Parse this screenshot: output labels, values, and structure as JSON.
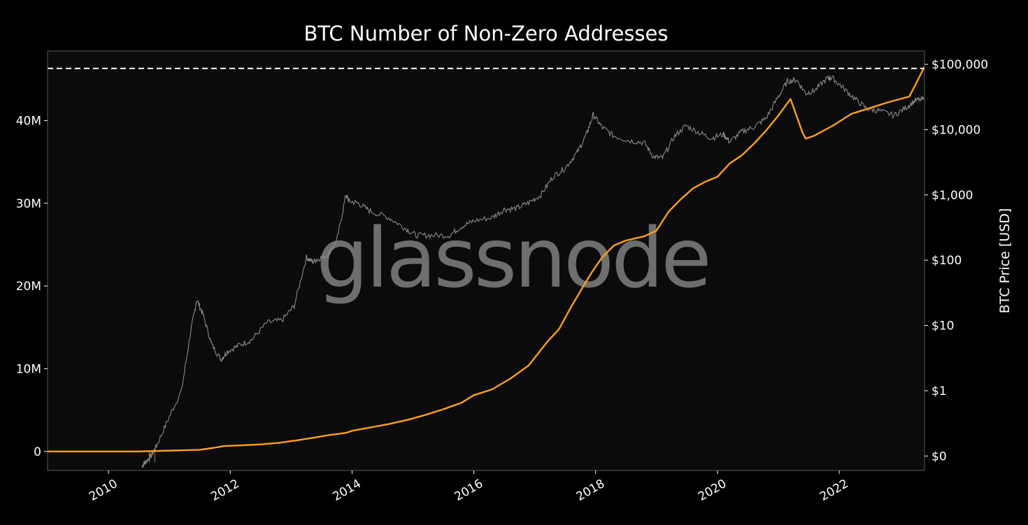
{
  "chart_data": {
    "type": "line",
    "title": "BTC Number of Non-Zero Addresses",
    "watermark": "glassnode",
    "xlabel": "",
    "ylabel_left": "",
    "ylabel_right": "BTC Price [USD]",
    "xlim": [
      2009.0,
      2023.4
    ],
    "ylim_left": [
      -2300000,
      48400000
    ],
    "ylim_right_log": [
      0.06,
      160000
    ],
    "grid": false,
    "background_color": "#0b0b0b",
    "x_ticks": [
      2010,
      2012,
      2014,
      2016,
      2018,
      2020,
      2022
    ],
    "x_tick_labels": [
      "2010",
      "2012",
      "2014",
      "2016",
      "2018",
      "2020",
      "2022"
    ],
    "y_left_ticks": [
      0,
      10000000,
      20000000,
      30000000,
      40000000
    ],
    "y_left_tick_labels": [
      "0",
      "10M",
      "20M",
      "30M",
      "40M"
    ],
    "y_right_ticks": [
      0.1,
      1,
      10,
      100,
      1000,
      10000,
      100000
    ],
    "y_right_tick_labels": [
      "$0",
      "$1",
      "$10",
      "$100",
      "$1,000",
      "$10,000",
      "$100,000"
    ],
    "reference_line": {
      "axis": "left",
      "value": 46300000,
      "style": "dashed",
      "color": "#ffffff"
    },
    "series": [
      {
        "axis": "left",
        "color": "#ff9f1c",
        "x": [
          2009.0,
          2010.5,
          2011.5,
          2011.7,
          2011.9,
          2012.2,
          2012.5,
          2012.8,
          2013.1,
          2013.4,
          2013.6,
          2013.9,
          2014.0,
          2014.3,
          2014.6,
          2014.9,
          2015.2,
          2015.5,
          2015.8,
          2016.0,
          2016.3,
          2016.6,
          2016.9,
          2017.2,
          2017.4,
          2017.6,
          2017.8,
          2017.95,
          2018.1,
          2018.3,
          2018.5,
          2018.8,
          2019.0,
          2019.2,
          2019.4,
          2019.6,
          2019.8,
          2020.0,
          2020.2,
          2020.4,
          2020.6,
          2020.8,
          2021.0,
          2021.2,
          2021.4,
          2021.45,
          2021.6,
          2021.9,
          2022.2,
          2022.5,
          2022.8,
          2023.0,
          2023.15,
          2023.25,
          2023.4
        ],
        "values": [
          0,
          0,
          200000,
          400000,
          650000,
          750000,
          850000,
          1050000,
          1350000,
          1700000,
          1950000,
          2250000,
          2500000,
          2900000,
          3300000,
          3800000,
          4400000,
          5100000,
          5900000,
          6800000,
          7500000,
          8800000,
          10400000,
          13200000,
          14800000,
          17500000,
          20000000,
          21800000,
          23400000,
          24900000,
          25500000,
          26000000,
          26700000,
          29000000,
          30500000,
          31800000,
          32600000,
          33200000,
          34800000,
          35800000,
          37200000,
          38800000,
          40600000,
          42600000,
          38500000,
          37800000,
          38200000,
          39400000,
          40800000,
          41500000,
          42200000,
          42600000,
          42900000,
          44300000,
          46500000
        ]
      },
      {
        "axis": "right_log",
        "color": "#8a8a8a",
        "x": [
          2010.55,
          2010.6,
          2010.7,
          2010.8,
          2011.0,
          2011.2,
          2011.35,
          2011.45,
          2011.55,
          2011.7,
          2011.85,
          2011.95,
          2012.15,
          2012.35,
          2012.6,
          2012.85,
          2013.05,
          2013.25,
          2013.35,
          2013.45,
          2013.6,
          2013.75,
          2013.9,
          2013.95,
          2014.1,
          2014.3,
          2014.6,
          2014.85,
          2015.05,
          2015.3,
          2015.6,
          2015.8,
          2016.0,
          2016.3,
          2016.5,
          2016.7,
          2016.9,
          2017.1,
          2017.3,
          2017.5,
          2017.7,
          2017.85,
          2017.96,
          2018.1,
          2018.3,
          2018.55,
          2018.8,
          2018.95,
          2019.1,
          2019.3,
          2019.48,
          2019.7,
          2019.9,
          2020.1,
          2020.2,
          2020.4,
          2020.6,
          2020.8,
          2021.0,
          2021.15,
          2021.3,
          2021.45,
          2021.6,
          2021.8,
          2021.88,
          2022.05,
          2022.25,
          2022.45,
          2022.65,
          2022.9,
          2023.1,
          2023.25,
          2023.4
        ],
        "values": [
          0.07,
          0.08,
          0.1,
          0.15,
          0.4,
          1,
          8,
          25,
          15,
          5,
          3,
          4,
          5,
          6,
          11,
          12,
          20,
          110,
          95,
          105,
          120,
          200,
          1000,
          800,
          750,
          560,
          450,
          320,
          240,
          240,
          240,
          330,
          400,
          450,
          600,
          620,
          760,
          1000,
          1900,
          2600,
          4500,
          8500,
          17000,
          11000,
          8000,
          6800,
          6300,
          3800,
          3700,
          8000,
          11500,
          9000,
          7400,
          8500,
          6500,
          9300,
          11000,
          15000,
          32000,
          55000,
          58000,
          36000,
          40000,
          61000,
          63000,
          45000,
          30000,
          21000,
          19500,
          16500,
          22000,
          28000,
          29000
        ]
      }
    ]
  }
}
